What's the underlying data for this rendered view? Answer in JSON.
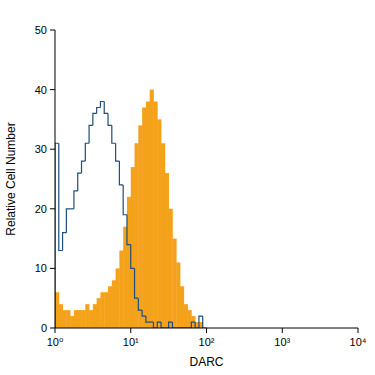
{
  "chart_data": {
    "type": "histogram",
    "x_label": "DARC",
    "y_label": "Relative Cell Number",
    "log": "x",
    "xlim": [
      1,
      10000
    ],
    "xticks": [
      {
        "value": 1,
        "label": "10⁰"
      },
      {
        "value": 10,
        "label": "10¹"
      },
      {
        "value": 100,
        "label": "10²"
      },
      {
        "value": 1000,
        "label": "10³"
      },
      {
        "value": 10000,
        "label": "10⁴"
      }
    ],
    "ylim": [
      0,
      50
    ],
    "yticks": [
      0,
      10,
      20,
      30,
      40,
      50
    ],
    "bins": [
      1,
      1.122,
      1.259,
      1.413,
      1.585,
      1.778,
      1.995,
      2.239,
      2.512,
      2.818,
      3.162,
      3.548,
      3.981,
      4.467,
      5.012,
      5.623,
      6.31,
      7.079,
      7.943,
      8.913,
      10,
      11.22,
      12.59,
      14.13,
      15.85,
      17.78,
      19.95,
      22.39,
      25.12,
      28.18,
      31.62,
      35.48,
      39.81,
      44.67,
      50.12,
      56.23,
      63.1,
      70.79,
      79.43,
      89.13,
      100
    ],
    "series": [
      {
        "type": "area",
        "color": "#f5a21b",
        "values": [
          6,
          4,
          3,
          3,
          2,
          3,
          3,
          3,
          4,
          3,
          4,
          5,
          6,
          6,
          7,
          8,
          10,
          13,
          17,
          22,
          27,
          31,
          34,
          37,
          38,
          40,
          38,
          35,
          31,
          26,
          20,
          15,
          11,
          7,
          4,
          3,
          2,
          1,
          1,
          0
        ]
      },
      {
        "type": "step",
        "color": "#1f4e79",
        "values": [
          31,
          13,
          16,
          20,
          20,
          23,
          26,
          28,
          31,
          34,
          36,
          37,
          38,
          36,
          34,
          31,
          28,
          24,
          19,
          14,
          10,
          5,
          3,
          2,
          1,
          1,
          0,
          1,
          0,
          0,
          1,
          0,
          0,
          0,
          0,
          0,
          1,
          0,
          2,
          0
        ]
      }
    ]
  }
}
